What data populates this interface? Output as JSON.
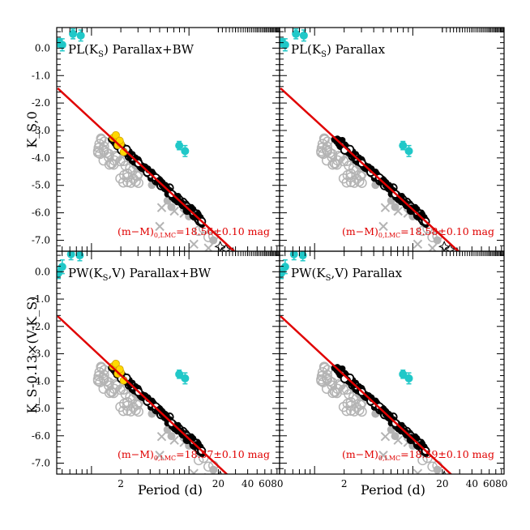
{
  "chart_data": {
    "type": "scatter",
    "layout": "2x2 grid, shared axes",
    "x_axis": {
      "label": "Period (d)",
      "scale": "log",
      "range": [
        0.44,
        85
      ],
      "tick_labels": [
        "2",
        "20",
        "40",
        "60",
        "80"
      ],
      "tick_values": [
        2,
        20,
        40,
        60,
        80
      ]
    },
    "y_tick_labels": [
      "-7.0",
      "-6.0",
      "-5.0",
      "-4.0",
      "-3.0",
      "-2.0",
      "-1.0",
      "0.0"
    ],
    "y_tick_values": [
      -7,
      -6,
      -5,
      -4,
      -3,
      -2,
      -1,
      0
    ],
    "y_range": [
      0.75,
      -7.4
    ],
    "rows": [
      {
        "ylabel": "K_S,0"
      },
      {
        "ylabel": "K_S-0.13×(V-K_S)"
      }
    ],
    "legend_note": "Colored markers: cyan = calibrators (with error bars), yellow = BW sample, black filled = LMC Cepheids, grey open circles / crosses / filled = rejected or alternative samples, star markers = long-period Cepheids; red line = fitted relation",
    "panels": [
      {
        "title_main": "PL(K",
        "title_sub": "S",
        "title_rest": ") Parallax+BW",
        "zp_main": "(m−M)",
        "zp_sub": "0,LMC",
        "zp_rest": "=18.56±0.10 mag",
        "fit": {
          "slope": -3.28,
          "intercept": -2.6,
          "x_range": [
            0.45,
            80
          ]
        },
        "bw": true,
        "calibrators": [
          {
            "logP": -0.33,
            "mag": 0.2,
            "err": 0.15
          },
          {
            "logP": -0.3,
            "mag": 0.12,
            "err": 0.22
          },
          {
            "logP": -0.19,
            "mag": 0.52,
            "err": 0.18
          },
          {
            "logP": -0.11,
            "mag": 0.46,
            "err": 0.2
          },
          {
            "logP": 0.9,
            "mag": -3.55,
            "err": 0.15
          },
          {
            "logP": 0.96,
            "mag": -3.75,
            "err": 0.2
          }
        ]
      },
      {
        "title_main": "PL(K",
        "title_sub": "S",
        "title_rest": ") Parallax",
        "zp_main": "(m−M)",
        "zp_sub": "0,LMC",
        "zp_rest": "=18.58±0.10 mag",
        "fit": {
          "slope": -3.28,
          "intercept": -2.6,
          "x_range": [
            0.45,
            80
          ]
        },
        "bw": false,
        "calibrators": [
          {
            "logP": -0.33,
            "mag": 0.2,
            "err": 0.15
          },
          {
            "logP": -0.3,
            "mag": 0.12,
            "err": 0.22
          },
          {
            "logP": -0.19,
            "mag": 0.52,
            "err": 0.18
          },
          {
            "logP": -0.11,
            "mag": 0.46,
            "err": 0.2
          },
          {
            "logP": 0.9,
            "mag": -3.55,
            "err": 0.15
          },
          {
            "logP": 0.96,
            "mag": -3.75,
            "err": 0.2
          }
        ]
      },
      {
        "title_main": "PW(K",
        "title_sub": "S",
        "title_rest": ",V) Parallax+BW",
        "zp_main": "(m−M)",
        "zp_sub": "0,LMC",
        "zp_rest": "=18.57±0.10 mag",
        "fit": {
          "slope": -3.33,
          "intercept": -2.78,
          "x_range": [
            0.45,
            80
          ]
        },
        "bw": true,
        "calibrators": [
          {
            "logP": -0.34,
            "mag": -0.05,
            "err": 0.2
          },
          {
            "logP": -0.3,
            "mag": 0.18,
            "err": 0.25
          },
          {
            "logP": -0.21,
            "mag": 0.64,
            "err": 0.2
          },
          {
            "logP": -0.12,
            "mag": 0.6,
            "err": 0.2
          },
          {
            "logP": 0.9,
            "mag": -3.75,
            "err": 0.15
          },
          {
            "logP": 0.96,
            "mag": -3.9,
            "err": 0.2
          }
        ]
      },
      {
        "title_main": "PW(K",
        "title_sub": "S",
        "title_rest": ",V) Parallax",
        "zp_main": "(m−M)",
        "zp_sub": "0,LMC",
        "zp_rest": "=18.59±0.10 mag",
        "fit": {
          "slope": -3.33,
          "intercept": -2.78,
          "x_range": [
            0.45,
            80
          ]
        },
        "bw": false,
        "calibrators": [
          {
            "logP": -0.34,
            "mag": -0.05,
            "err": 0.2
          },
          {
            "logP": -0.3,
            "mag": 0.18,
            "err": 0.25
          },
          {
            "logP": -0.21,
            "mag": 0.64,
            "err": 0.2
          },
          {
            "logP": -0.12,
            "mag": 0.6,
            "err": 0.2
          },
          {
            "logP": 0.9,
            "mag": -3.75,
            "err": 0.15
          },
          {
            "logP": 0.96,
            "mag": -3.9,
            "err": 0.2
          }
        ]
      }
    ],
    "colors": {
      "fit_line": "#e00000",
      "calibrator": "#20c8c8",
      "bw": "#ffd800",
      "lmc": "#000000",
      "rejected": "#b4b4b4",
      "zeropoint_text": "#e00000"
    }
  }
}
